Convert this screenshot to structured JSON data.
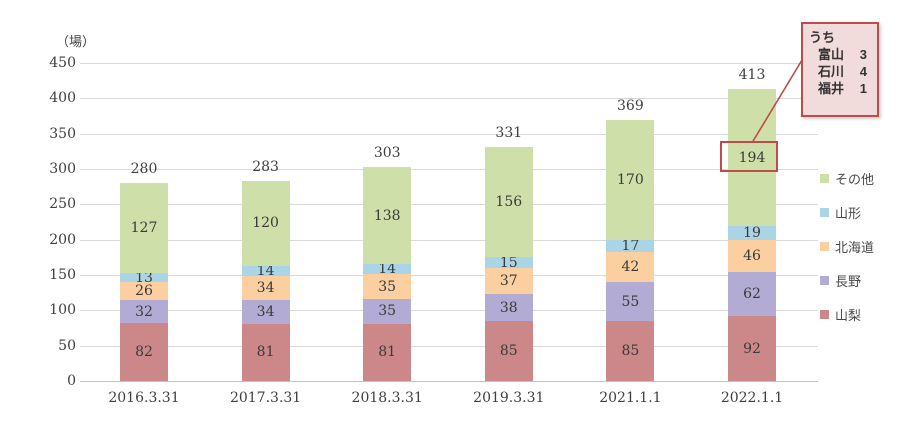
{
  "chart_data": {
    "type": "bar",
    "stacked": true,
    "title": "",
    "unit_label": "（場）",
    "categories": [
      "2016.3.31",
      "2017.3.31",
      "2018.3.31",
      "2019.3.31",
      "2021.1.1",
      "2022.1.1"
    ],
    "series": [
      {
        "name": "山梨",
        "color": "#cc8889",
        "values": [
          82,
          81,
          81,
          85,
          85,
          92
        ]
      },
      {
        "name": "長野",
        "color": "#b2abd3",
        "values": [
          32,
          34,
          35,
          38,
          55,
          62
        ]
      },
      {
        "name": "北海道",
        "color": "#fbcfa0",
        "values": [
          26,
          34,
          35,
          37,
          42,
          46
        ]
      },
      {
        "name": "山形",
        "color": "#a9d5e6",
        "values": [
          13,
          14,
          14,
          15,
          17,
          19
        ]
      },
      {
        "name": "その他",
        "color": "#cedfaa",
        "values": [
          127,
          120,
          138,
          156,
          170,
          194
        ]
      }
    ],
    "totals": [
      280,
      283,
      303,
      331,
      369,
      413
    ],
    "y_ticks": [
      0,
      50,
      100,
      150,
      200,
      250,
      300,
      350,
      400,
      450
    ],
    "ylim": [
      0,
      450
    ],
    "grid": true,
    "legend_position": "right",
    "legend_order": [
      "その他",
      "山形",
      "北海道",
      "長野",
      "山梨"
    ],
    "annotation": {
      "title": "うち",
      "items": [
        {
          "label": "富山",
          "value": "3"
        },
        {
          "label": "石川",
          "value": "4"
        },
        {
          "label": "福井",
          "value": "1"
        }
      ],
      "highlighted_segment": {
        "category": "2022.1.1",
        "series": "その他",
        "value": 194
      },
      "accent_color": "#bf4b4b"
    },
    "colors": {
      "gridline": "#d9d9d9",
      "axis": "#c3c3c3",
      "text": "#3f3f3f"
    }
  }
}
